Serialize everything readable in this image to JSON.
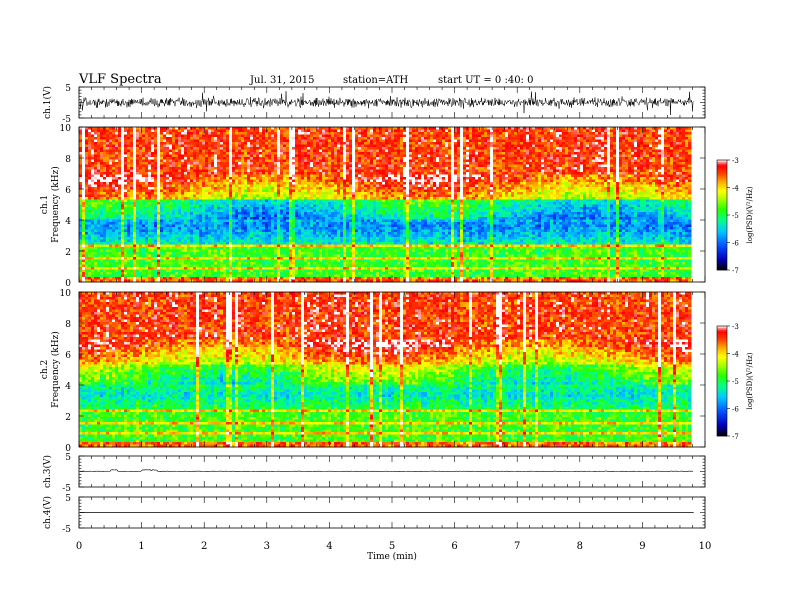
{
  "header": {
    "title": "VLF  Spectra",
    "date": "Jul. 31, 2015",
    "station": "station=ATH",
    "start": "start  UT =   0 :40: 0"
  },
  "chart_data": [
    {
      "type": "line",
      "ylabel": "ch.1(V)",
      "ylim": [
        -5,
        5
      ],
      "yticks": [
        "5",
        "-5"
      ],
      "description_of_signal": "noisy broadband waveform centered near 0 V"
    },
    {
      "type": "heatmap",
      "ylabel_top": "ch.1",
      "ylabel": "Frequency  (kHz)",
      "ylim": [
        0,
        10
      ],
      "yticks": [
        0,
        2,
        4,
        6,
        8,
        10
      ],
      "colorbar": {
        "label": "log(PSD)(V²/Hz)",
        "range": [
          -7,
          -3
        ],
        "ticks": [
          "-3",
          "-4",
          "-5",
          "-6",
          "-7"
        ]
      }
    },
    {
      "type": "heatmap",
      "ylabel_top": "ch.2",
      "ylabel": "Frequency  (kHz)",
      "ylim": [
        0,
        10
      ],
      "yticks": [
        0,
        2,
        4,
        6,
        8,
        10
      ],
      "colorbar": {
        "label": "log(PSD)(V²/Hz)",
        "range": [
          -7,
          -3
        ],
        "ticks": [
          "-3",
          "-4",
          "-5",
          "-6",
          "-7"
        ]
      }
    },
    {
      "type": "line",
      "ylabel": "ch.3(V)",
      "ylim": [
        -5,
        5
      ],
      "yticks": [
        "5",
        "-5"
      ]
    },
    {
      "type": "line",
      "ylabel": "ch.4(V)",
      "ylim": [
        -5,
        5
      ],
      "yticks": [
        "5",
        "-5"
      ]
    }
  ],
  "xaxis": {
    "label": "Time  (min)",
    "range": [
      0,
      10
    ],
    "ticks": [
      "0",
      "1",
      "2",
      "3",
      "4",
      "5",
      "6",
      "7",
      "8",
      "9",
      "10"
    ],
    "data_end": 9.82
  },
  "colors": {
    "scale": [
      "#000000",
      "#0000cc",
      "#0044ff",
      "#00c8ff",
      "#00ff80",
      "#22ff00",
      "#b4ff00",
      "#ffff00",
      "#ffaa00",
      "#ff3300",
      "#ff0000",
      "#ffffff"
    ]
  }
}
